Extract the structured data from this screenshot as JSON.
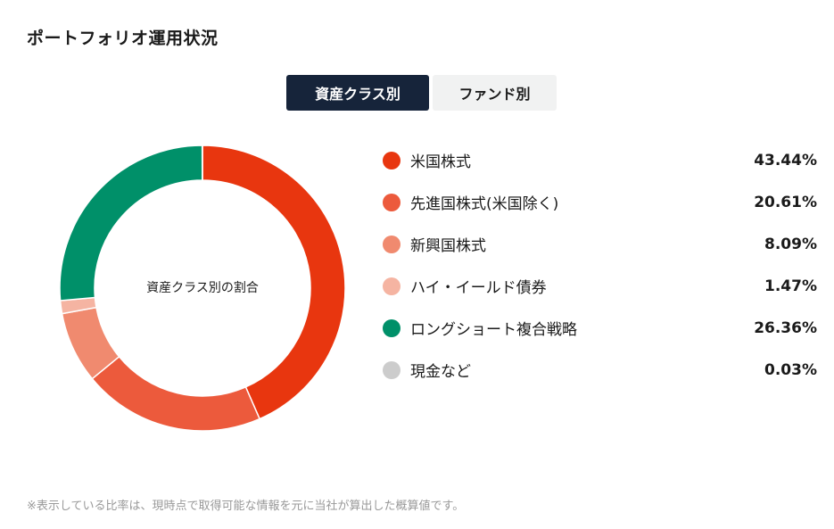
{
  "page": {
    "title": "ポートフォリオ運用状況",
    "footnote": "※表示している比率は、現時点で取得可能な情報を元に当社が算出した概算値です。"
  },
  "tabs": [
    {
      "label": "資産クラス別",
      "active": true
    },
    {
      "label": "ファンド別",
      "active": false
    }
  ],
  "chart_data": {
    "type": "pie",
    "center_label": "資産クラス別の割合",
    "categories": [
      "米国株式",
      "先進国株式(米国除く)",
      "新興国株式",
      "ハイ・イールド債券",
      "ロングショート複合戦略",
      "現金など"
    ],
    "values": [
      43.44,
      20.61,
      8.09,
      1.47,
      26.36,
      0.03
    ],
    "value_labels": [
      "43.44%",
      "20.61%",
      "8.09%",
      "1.47%",
      "26.36%",
      "0.03%"
    ],
    "colors": [
      "#e8360f",
      "#ec5a3c",
      "#f08a6f",
      "#f5b4a2",
      "#009069",
      "#cccccc"
    ],
    "legend_position": "right"
  }
}
